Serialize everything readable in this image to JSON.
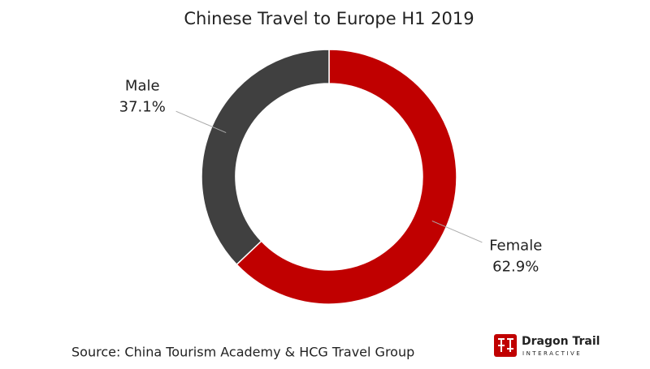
{
  "chart_data": {
    "type": "pie",
    "title": "Chinese Travel to Europe H1 2019",
    "categories": [
      "Female",
      "Male"
    ],
    "values": [
      62.9,
      37.1
    ],
    "value_labels": [
      "62.9%",
      "37.1%"
    ],
    "colors": [
      "#c00000",
      "#404040"
    ],
    "source": "Source: China Tourism Academy & HCG Travel Group"
  },
  "logo": {
    "name": "Dragon Trail",
    "tagline": "INTERACTIVE"
  }
}
